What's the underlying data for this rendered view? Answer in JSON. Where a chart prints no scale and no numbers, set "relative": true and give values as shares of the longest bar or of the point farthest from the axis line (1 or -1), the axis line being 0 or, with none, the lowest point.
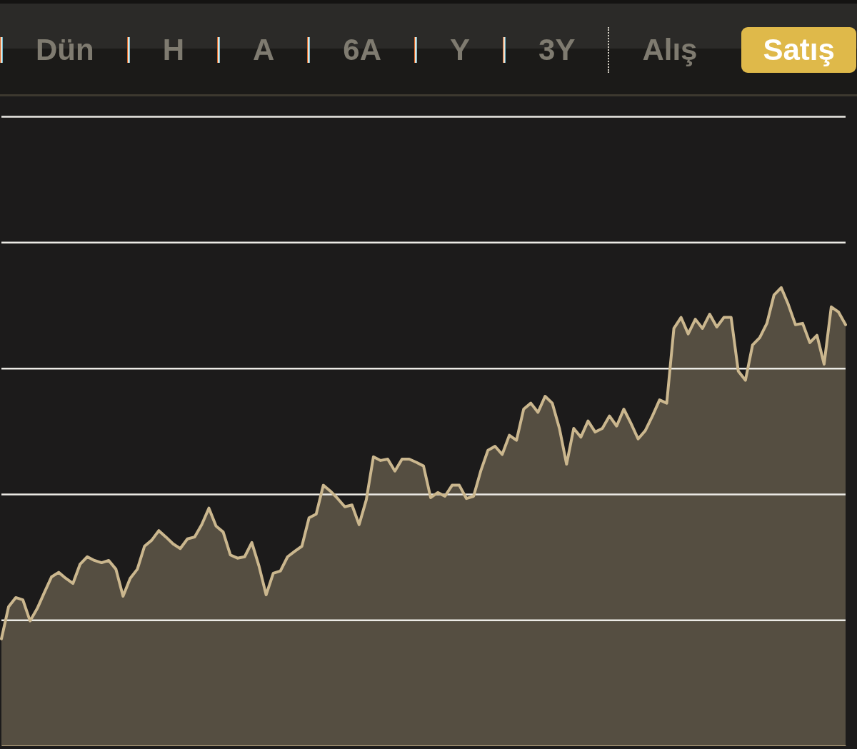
{
  "chart_data": {
    "type": "area",
    "relative": true,
    "grid": true,
    "annotations": [
      "Dün",
      "H",
      "A",
      "6A",
      "Y",
      "3Y",
      "Alış",
      "Satış"
    ],
    "categories": [
      null,
      null,
      null,
      null,
      null,
      null,
      null,
      null,
      null,
      null,
      null,
      null,
      null,
      null,
      null,
      null,
      null,
      null,
      null,
      null,
      null,
      null,
      null,
      null,
      null,
      null,
      null,
      null,
      null,
      null,
      null,
      null,
      null,
      null,
      null,
      null,
      null,
      null,
      null,
      null,
      null,
      null,
      null,
      null,
      null,
      null,
      null,
      null,
      null,
      null,
      null,
      null,
      null,
      null,
      null,
      null,
      null,
      null,
      null,
      null,
      null,
      null,
      null,
      null,
      null,
      null,
      null,
      null,
      null,
      null,
      null,
      null,
      null,
      null,
      null,
      null,
      null,
      null,
      null,
      null,
      null,
      null,
      null,
      null,
      null,
      null,
      null,
      null,
      null,
      null,
      null,
      null,
      null,
      null,
      null,
      null,
      null,
      null,
      null,
      null,
      null,
      null,
      null,
      null,
      null,
      null,
      null,
      null,
      null,
      null,
      null,
      null,
      null,
      null,
      null,
      null,
      null,
      null,
      null
    ],
    "series": [
      {
        "color": "#cbb78e",
        "values": [
          0.234,
          0.304,
          0.324,
          0.319,
          0.273,
          0.3,
          0.335,
          0.369,
          0.379,
          0.366,
          0.355,
          0.397,
          0.413,
          0.405,
          0.4,
          0.405,
          0.386,
          0.327,
          0.366,
          0.386,
          0.436,
          0.449,
          0.47,
          0.456,
          0.441,
          0.431,
          0.452,
          0.456,
          0.483,
          0.519,
          0.48,
          0.467,
          0.417,
          0.41,
          0.413,
          0.444,
          0.393,
          0.33,
          0.377,
          0.382,
          0.413,
          0.425,
          0.436,
          0.498,
          0.506,
          0.569,
          0.556,
          0.54,
          0.522,
          0.526,
          0.483,
          0.537,
          0.631,
          0.623,
          0.626,
          0.6,
          0.626,
          0.626,
          0.619,
          0.611,
          0.542,
          0.553,
          0.545,
          0.569,
          0.569,
          0.54,
          0.545,
          0.6,
          0.645,
          0.654,
          0.636,
          0.678,
          0.667,
          0.735,
          0.748,
          0.728,
          0.763,
          0.748,
          0.693,
          0.615,
          0.693,
          0.674,
          0.709,
          0.685,
          0.693,
          0.72,
          0.698,
          0.735,
          0.704,
          0.67,
          0.688,
          0.72,
          0.755,
          0.748,
          0.911,
          0.935,
          0.899,
          0.931,
          0.911,
          0.942,
          0.914,
          0.935,
          0.935,
          0.818,
          0.798,
          0.875,
          0.891,
          0.922,
          0.984,
          1,
          0.963,
          0.919,
          0.922,
          0.88,
          0.896,
          0.833,
          0.958,
          0.947,
          0.919
        ]
      }
    ]
  }
}
